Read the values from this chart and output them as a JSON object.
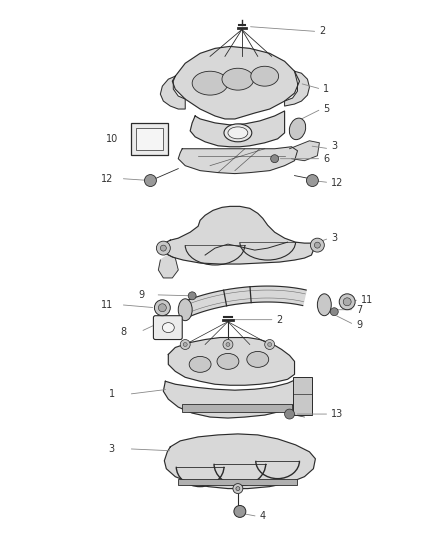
{
  "bg_color": "#ffffff",
  "line_color": "#2a2a2a",
  "label_color": "#333333",
  "leader_color": "#888888",
  "fig_width": 4.38,
  "fig_height": 5.33,
  "dpi": 100,
  "component_fill": "#d8d8d8",
  "component_fill2": "#c8c8c8",
  "component_dark": "#b0b0b0",
  "label_fontsize": 7.0
}
